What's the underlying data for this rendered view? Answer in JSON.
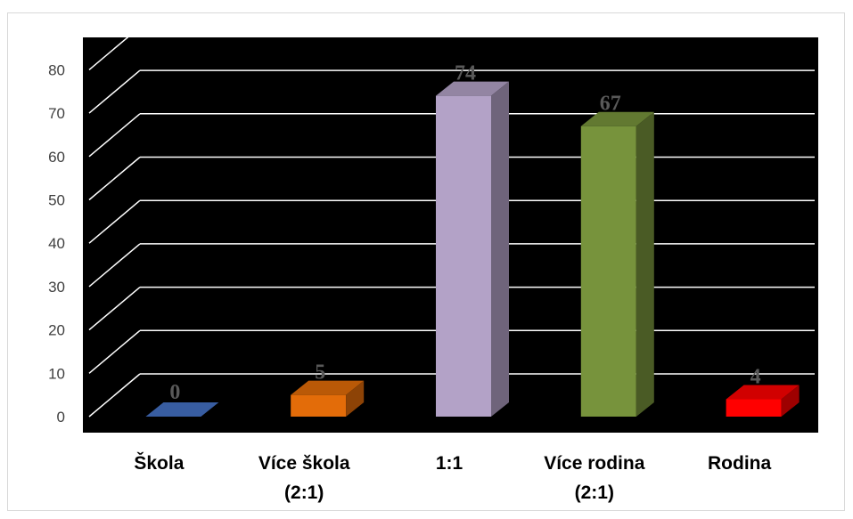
{
  "chart_data": {
    "type": "bar",
    "style": "3d-column",
    "categories": [
      "Škola",
      "Více škola (2:1)",
      "1:1",
      "Více rodina (2:1)",
      "Rodina"
    ],
    "category_lines": [
      [
        "Škola"
      ],
      [
        "Více škola",
        "(2:1)"
      ],
      [
        "1:1"
      ],
      [
        "Více rodina",
        "(2:1)"
      ],
      [
        "Rodina"
      ]
    ],
    "values": [
      0,
      5,
      74,
      67,
      4
    ],
    "data_labels": [
      "0",
      "5",
      "74",
      "67",
      "4"
    ],
    "colors": [
      "#4472c4",
      "#e36c09",
      "#b3a2c7",
      "#77933c",
      "#ff0000"
    ],
    "ylim": [
      0,
      80
    ],
    "yticks": [
      "0",
      "10",
      "20",
      "30",
      "40",
      "50",
      "60",
      "70",
      "80"
    ],
    "grid": true,
    "background": "#000000",
    "gridline_color": "#ffffff",
    "legend": "none",
    "title": "",
    "xlabel": "",
    "ylabel": ""
  }
}
